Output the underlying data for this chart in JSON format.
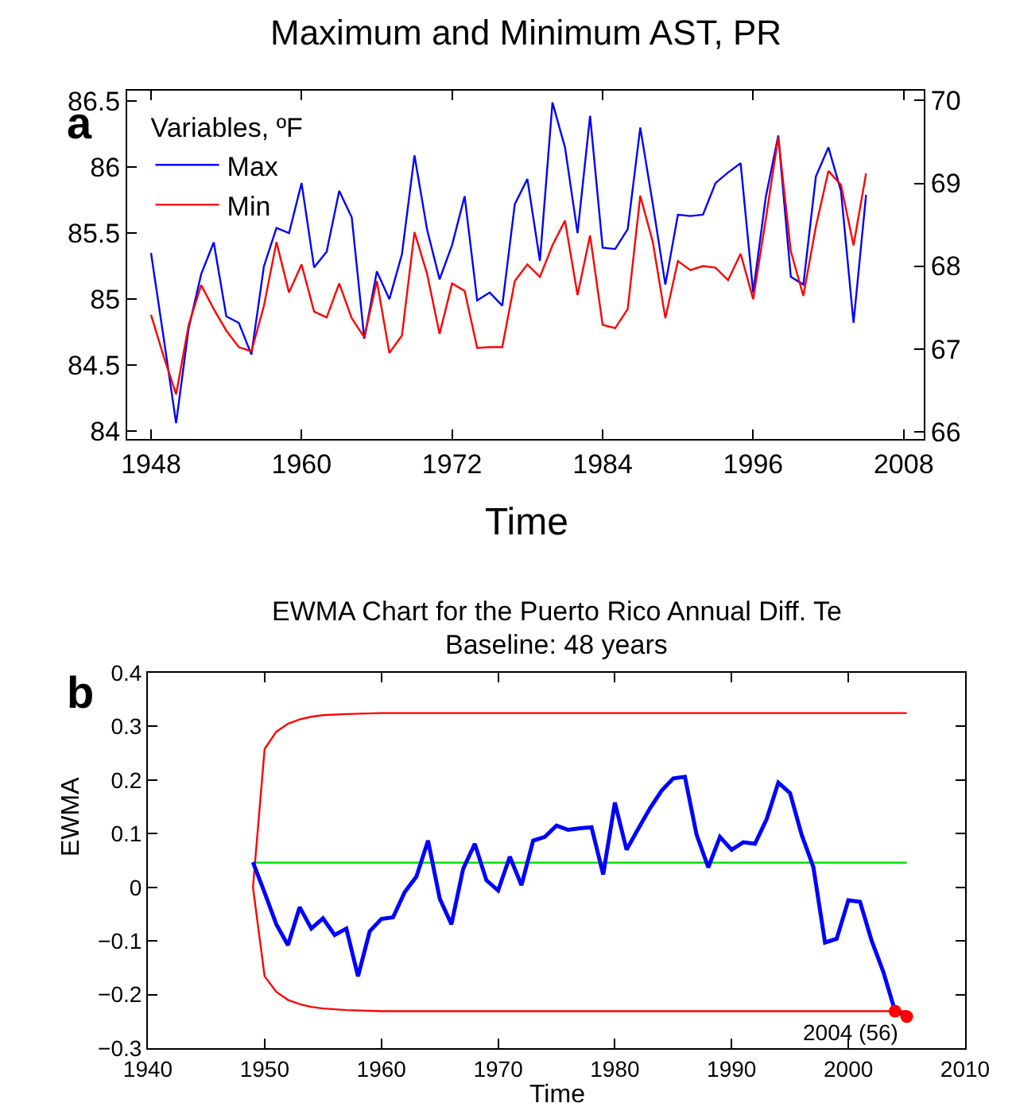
{
  "chart_data": [
    {
      "type": "line",
      "title": "Maximum and Minimum AST, PR",
      "xlabel": "Time",
      "legend_title": "Variables, ºF",
      "legend": "top left",
      "grid": false,
      "annotations": [
        "a"
      ],
      "xlim": [
        1946.1,
        2009.6
      ],
      "xticks": [
        1948,
        1960,
        1972,
        1984,
        1996,
        2008
      ],
      "ylim": [
        83.94,
        86.58
      ],
      "yticks": [
        84,
        84.5,
        85,
        85.5,
        86,
        86.5
      ],
      "y2lim": [
        65.91,
        70.12
      ],
      "y2ticks": [
        66,
        67,
        68,
        69,
        70
      ],
      "x": [
        1948,
        1949,
        1950,
        1951,
        1952,
        1953,
        1954,
        1955,
        1956,
        1957,
        1958,
        1959,
        1960,
        1961,
        1962,
        1963,
        1964,
        1965,
        1966,
        1967,
        1968,
        1969,
        1970,
        1971,
        1972,
        1973,
        1974,
        1975,
        1976,
        1977,
        1978,
        1979,
        1980,
        1981,
        1982,
        1983,
        1984,
        1985,
        1986,
        1987,
        1988,
        1989,
        1990,
        1991,
        1992,
        1993,
        1994,
        1995,
        1996,
        1997,
        1998,
        1999,
        2000,
        2001,
        2002,
        2003,
        2004,
        2005
      ],
      "series": [
        {
          "name": "Max",
          "color": "#0000ff",
          "values": [
            85.35,
            84.71,
            84.06,
            84.78,
            85.19,
            85.43,
            84.87,
            84.82,
            84.58,
            85.25,
            85.54,
            85.5,
            85.88,
            85.24,
            85.36,
            85.82,
            85.62,
            84.7,
            85.21,
            85.0,
            85.34,
            86.09,
            85.53,
            85.15,
            85.41,
            85.78,
            84.99,
            85.05,
            84.95,
            85.72,
            85.91,
            85.29,
            86.49,
            86.15,
            85.5,
            86.39,
            85.39,
            85.38,
            85.53,
            86.3,
            85.72,
            85.11,
            85.64,
            85.63,
            85.64,
            85.88,
            85.96,
            86.03,
            85.05,
            85.77,
            86.24,
            85.17,
            85.11,
            85.93,
            86.15,
            85.82,
            84.82,
            85.79
          ]
        },
        {
          "name": "Min",
          "color": "#ff0000",
          "axis": "y2",
          "values": [
            67.41,
            66.91,
            66.45,
            67.29,
            67.77,
            67.48,
            67.22,
            67.02,
            66.97,
            67.52,
            68.29,
            67.68,
            68.02,
            67.45,
            67.38,
            67.79,
            67.37,
            67.14,
            67.82,
            66.95,
            67.16,
            68.41,
            67.91,
            67.18,
            67.79,
            67.7,
            67.01,
            67.02,
            67.02,
            67.82,
            68.02,
            67.87,
            68.25,
            68.55,
            67.65,
            68.37,
            67.29,
            67.25,
            67.48,
            68.85,
            68.29,
            67.37,
            68.06,
            67.95,
            68.0,
            67.98,
            67.83,
            68.15,
            67.6,
            68.56,
            69.56,
            68.18,
            67.64,
            68.48,
            69.15,
            68.98,
            68.25,
            69.12
          ]
        }
      ]
    },
    {
      "type": "line",
      "title": "EWMA Chart for the Puerto Rico Annual Diff. Te",
      "subtitle": "Baseline: 48 years",
      "xlabel": "Time",
      "ylabel": "EWMA",
      "grid": false,
      "legend": false,
      "annotations": [
        "b",
        {
          "text": "2004 (56)",
          "x": 2004,
          "y": -0.231
        }
      ],
      "xlim": [
        1940,
        2010
      ],
      "xticks": [
        1940,
        1950,
        1960,
        1970,
        1980,
        1990,
        2000,
        2010
      ],
      "ylim": [
        -0.3,
        0.4
      ],
      "yticks": [
        {
          "value": -0.3,
          "label": "−0.3"
        },
        {
          "value": -0.2,
          "label": "−0.2"
        },
        {
          "value": -0.1,
          "label": "−0.1"
        },
        0,
        0.1,
        0.2,
        0.3,
        0.4
      ],
      "series": [
        {
          "color": "#00e000",
          "x": [
            1949,
            2005
          ],
          "values": [
            0.046,
            0.046
          ]
        },
        {
          "color": "#ff0000",
          "x": [
            2005,
            1960,
            1957,
            1955,
            1954,
            1953,
            1952,
            1951,
            1950,
            1949,
            1950,
            1951,
            1952,
            1953,
            1954,
            1955,
            1957,
            1960,
            2005
          ],
          "values": [
            0.325,
            0.325,
            0.323,
            0.321,
            0.318,
            0.313,
            0.305,
            0.29,
            0.258,
            0.0,
            -0.166,
            -0.195,
            -0.21,
            -0.218,
            -0.223,
            -0.226,
            -0.229,
            -0.231,
            -0.231
          ]
        },
        {
          "color": "#0000ff",
          "x": [
            1949,
            1950,
            1951,
            1952,
            1953,
            1954,
            1955,
            1956,
            1957,
            1958,
            1959,
            1960,
            1961,
            1962,
            1963,
            1964,
            1965,
            1966,
            1967,
            1968,
            1969,
            1970,
            1971,
            1972,
            1973,
            1974,
            1975,
            1976,
            1977,
            1978,
            1979,
            1980,
            1981,
            1982,
            1983,
            1984,
            1985,
            1986,
            1987,
            1988,
            1989,
            1990,
            1991,
            1992,
            1993,
            1994,
            1995,
            1996,
            1997,
            1998,
            1999,
            2000,
            2001,
            2002,
            2003,
            2004,
            2005
          ],
          "values": [
            0.047,
            -0.01,
            -0.069,
            -0.108,
            -0.037,
            -0.077,
            -0.058,
            -0.089,
            -0.077,
            -0.166,
            -0.082,
            -0.059,
            -0.056,
            -0.009,
            0.02,
            0.087,
            -0.021,
            -0.069,
            0.034,
            0.081,
            0.013,
            -0.006,
            0.057,
            0.004,
            0.087,
            0.094,
            0.115,
            0.107,
            0.11,
            0.112,
            0.024,
            0.158,
            0.07,
            0.109,
            0.147,
            0.18,
            0.203,
            0.206,
            0.098,
            0.037,
            0.094,
            0.07,
            0.084,
            0.081,
            0.127,
            0.195,
            0.176,
            0.098,
            0.038,
            -0.103,
            -0.096,
            -0.024,
            -0.027,
            -0.1,
            -0.158,
            -0.231,
            -0.241
          ]
        },
        {
          "type": "scatter",
          "color": "#ff0000",
          "marker": "circle",
          "x": [
            2004,
            2005
          ],
          "values": [
            -0.231,
            -0.241
          ]
        }
      ]
    }
  ]
}
